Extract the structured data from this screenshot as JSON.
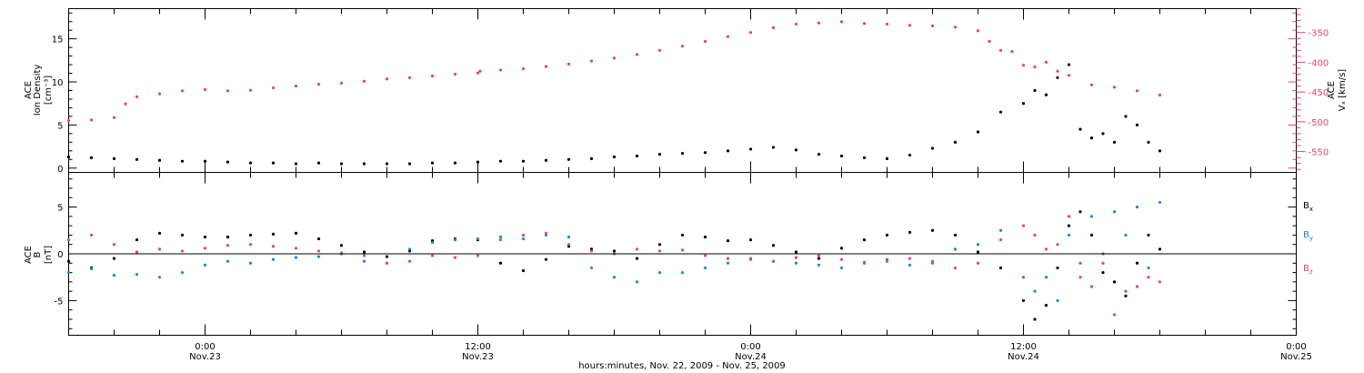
{
  "chart_data": [
    {
      "type": "scatter",
      "title": "",
      "xlabel": "hours:minutes, Nov. 22, 2009 - Nov. 25, 2009",
      "x_ticks": [
        {
          "time": "0:00",
          "date": "Nov.23",
          "hours": 24
        },
        {
          "time": "12:00",
          "date": "Nov.23",
          "hours": 36
        },
        {
          "time": "0:00",
          "date": "Nov.24",
          "hours": 48
        },
        {
          "time": "12:00",
          "date": "Nov.24",
          "hours": 60
        },
        {
          "time": "0:00",
          "date": "Nov.25",
          "hours": 72
        }
      ],
      "x_range_hours": [
        18,
        72
      ],
      "ylabel_left": {
        "line1": "ACE",
        "line2": "Ion Density",
        "line3": "[cm⁻³]"
      },
      "ylabel_right": {
        "line1": "ACE",
        "line2": "Vₓ [km/s]"
      },
      "ylim_left": [
        -0.5,
        18.5
      ],
      "ylim_right": [
        -585,
        -310
      ],
      "left_ticks": [
        "0",
        "5",
        "10",
        "15"
      ],
      "right_ticks": [
        "-350",
        "-400",
        "-450",
        "-500",
        "-550"
      ],
      "series": [
        {
          "name": "Ion Density",
          "axis": "left",
          "color": "#000000",
          "x": [
            18,
            19,
            20,
            21,
            22,
            23,
            24,
            25,
            26,
            27,
            28,
            29,
            30,
            31,
            32,
            33,
            34,
            35,
            36,
            37,
            38,
            39,
            40,
            41,
            42,
            43,
            44,
            45,
            46,
            47,
            48,
            49,
            50,
            51,
            52,
            53,
            54,
            55,
            56,
            57,
            58,
            59,
            60,
            60.5,
            61,
            61.5,
            62,
            62.5,
            63,
            63.5,
            64,
            64.5,
            65,
            65.5,
            66
          ],
          "y": [
            1.3,
            1.2,
            1.1,
            1.0,
            0.9,
            0.8,
            0.8,
            0.7,
            0.6,
            0.6,
            0.5,
            0.6,
            0.5,
            0.5,
            0.5,
            0.5,
            0.6,
            0.6,
            0.7,
            0.8,
            0.8,
            0.9,
            1.0,
            1.1,
            1.3,
            1.4,
            1.6,
            1.7,
            1.8,
            2.0,
            2.2,
            2.4,
            2.1,
            1.6,
            1.4,
            1.2,
            1.1,
            1.5,
            2.3,
            3.0,
            4.2,
            6.5,
            7.5,
            9.0,
            8.5,
            10.5,
            12.0,
            4.5,
            3.5,
            4.0,
            3.0,
            6.0,
            5.0,
            3.0,
            2.0
          ]
        },
        {
          "name": "Vx",
          "axis": "right",
          "color": "#e8436e",
          "x": [
            18,
            19,
            20,
            20.5,
            21,
            22,
            23,
            24,
            25,
            26,
            27,
            28,
            29,
            30,
            31,
            32,
            33,
            34,
            35,
            36,
            36.1,
            37,
            38,
            39,
            40,
            41,
            42,
            43,
            44,
            45,
            46,
            47,
            48,
            49,
            50,
            51,
            52,
            53,
            54,
            55,
            56,
            57,
            58,
            58.5,
            59,
            59.5,
            60,
            60.5,
            61,
            61.5,
            62,
            63,
            64,
            65,
            66
          ],
          "y": [
            -498,
            -497,
            -493,
            -470,
            -458,
            -453,
            -448,
            -446,
            -448,
            -447,
            -443,
            -440,
            -437,
            -435,
            -432,
            -428,
            -426,
            -423,
            -420,
            -418,
            -415,
            -413,
            -411,
            -407,
            -403,
            -398,
            -393,
            -387,
            -380,
            -373,
            -365,
            -357,
            -350,
            -342,
            -336,
            -334,
            -332,
            -335,
            -336,
            -338,
            -339,
            -341,
            -347,
            -365,
            -380,
            -382,
            -405,
            -408,
            -400,
            -415,
            -422,
            -438,
            -442,
            -448,
            -455
          ]
        }
      ]
    },
    {
      "type": "scatter",
      "title": "",
      "xlabel": "",
      "ylabel": {
        "line1": "ACE",
        "line2": "B",
        "line3": "[nT]"
      },
      "ylim": [
        -8.7,
        8.7
      ],
      "y_ticks": [
        "5",
        "0",
        "-5"
      ],
      "zero_line": true,
      "legend": [
        "Bₓ",
        "Bᵧ",
        "B_z"
      ],
      "legend_display": {
        "bx": "B",
        "bx_sub": "x",
        "by": "B",
        "by_sub": "y",
        "bz": "B",
        "bz_sub": "z"
      },
      "series": [
        {
          "name": "Bx",
          "color": "#000000",
          "x": [
            18,
            19,
            20,
            21,
            22,
            23,
            24,
            25,
            26,
            27,
            28,
            29,
            30,
            31,
            32,
            33,
            34,
            35,
            36,
            37,
            38,
            39,
            40,
            41,
            42,
            43,
            44,
            45,
            46,
            47,
            48,
            49,
            50,
            51,
            52,
            53,
            54,
            55,
            56,
            57,
            58,
            59,
            60,
            60.5,
            61,
            61.5,
            62,
            62.5,
            63,
            63.5,
            64,
            64.5,
            65,
            65.5,
            66
          ],
          "y": [
            -0.8,
            -1.5,
            -0.5,
            1.5,
            2.2,
            2.0,
            1.8,
            1.8,
            2.0,
            2.1,
            2.2,
            1.6,
            0.9,
            0.2,
            -0.3,
            0.3,
            1.4,
            1.6,
            1.5,
            -1.0,
            -1.8,
            -0.6,
            0.8,
            0.5,
            0.3,
            -0.5,
            1.0,
            2.0,
            1.8,
            1.4,
            1.5,
            0.9,
            0.2,
            -0.5,
            0.6,
            1.5,
            2.0,
            2.3,
            2.5,
            2.0,
            0.2,
            -1.5,
            -5.0,
            -7.0,
            -5.5,
            -1.5,
            3.0,
            4.5,
            2.0,
            -2.0,
            -3.0,
            -4.5,
            -1.0,
            2.0,
            0.5
          ]
        },
        {
          "name": "By",
          "color": "#1b87e3",
          "x": [
            18,
            19,
            20,
            21,
            22,
            23,
            24,
            25,
            26,
            27,
            28,
            29,
            30,
            31,
            32,
            33,
            34,
            35,
            36,
            37,
            38,
            39,
            40,
            41,
            42,
            43,
            44,
            45,
            46,
            47,
            48,
            49,
            50,
            51,
            52,
            53,
            54,
            55,
            56,
            57,
            58,
            59,
            60,
            60.5,
            61,
            61.5,
            62,
            62.5,
            63,
            63.5,
            64,
            64.5,
            65,
            65.5,
            66
          ],
          "y": [
            -2.0,
            -1.6,
            -2.3,
            -2.2,
            -2.5,
            -2.0,
            -1.2,
            -0.8,
            -1.0,
            -0.6,
            -0.4,
            -0.3,
            0.0,
            -0.8,
            -1.0,
            0.5,
            1.2,
            1.5,
            1.6,
            1.8,
            1.6,
            2.0,
            1.8,
            -1.5,
            -2.5,
            -3.0,
            -2.0,
            -2.0,
            -1.5,
            -1.0,
            -0.5,
            -0.8,
            -1.0,
            -1.2,
            -1.5,
            -1.0,
            -0.6,
            -1.2,
            -0.8,
            0.5,
            1.0,
            2.5,
            -2.5,
            -4.0,
            -2.5,
            -5.0,
            2.0,
            -1.0,
            4.0,
            0.0,
            4.5,
            2.0,
            5.0,
            -1.5,
            5.5
          ]
        },
        {
          "name": "Bz",
          "color": "#e8436e",
          "x": [
            18,
            19,
            20,
            21,
            22,
            23,
            24,
            25,
            26,
            27,
            28,
            29,
            30,
            31,
            32,
            33,
            34,
            35,
            36,
            37,
            38,
            39,
            40,
            41,
            42,
            43,
            44,
            45,
            46,
            47,
            48,
            49,
            50,
            51,
            52,
            53,
            54,
            55,
            56,
            57,
            58,
            59,
            60,
            60.5,
            61,
            61.5,
            62,
            62.5,
            63,
            63.5,
            64,
            64.5,
            65,
            65.5,
            66
          ],
          "y": [
            1.5,
            2.0,
            1.0,
            0.2,
            0.5,
            0.3,
            0.6,
            0.9,
            1.0,
            0.8,
            0.6,
            0.3,
            0.1,
            -0.2,
            -1.0,
            -0.8,
            -0.2,
            -0.4,
            -0.2,
            1.5,
            2.0,
            2.2,
            1.0,
            0.3,
            0.0,
            0.5,
            0.3,
            0.4,
            -0.2,
            -0.5,
            -0.6,
            -0.8,
            -0.4,
            -0.2,
            -0.6,
            -0.9,
            -0.8,
            -0.5,
            -1.0,
            -1.5,
            -1.0,
            1.5,
            3.0,
            2.0,
            0.5,
            1.0,
            4.0,
            -2.5,
            -3.5,
            -1.0,
            -6.5,
            -4.0,
            -3.5,
            -2.5,
            -3.0
          ]
        }
      ]
    }
  ]
}
